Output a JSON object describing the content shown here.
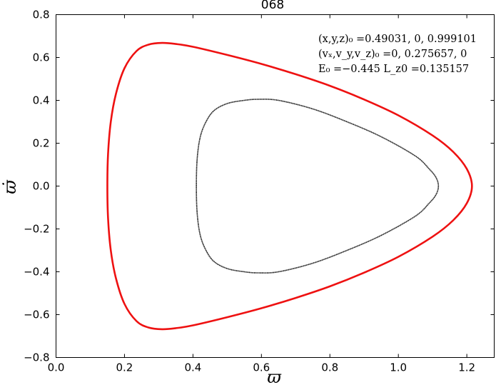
{
  "chart_data": {
    "type": "scatter",
    "title": "068",
    "xlabel": "ϖ",
    "ylabel": "ϖ̇",
    "xlim": [
      0.0,
      1.28
    ],
    "ylim": [
      -0.8,
      0.8
    ],
    "xticks": [
      "0.0",
      "0.2",
      "0.4",
      "0.6",
      "0.8",
      "1.0",
      "1.2"
    ],
    "xtick_values": [
      0.0,
      0.2,
      0.4,
      0.6,
      0.8,
      1.0,
      1.2
    ],
    "yticks": [
      "−0.8",
      "−0.6",
      "−0.4",
      "−0.2",
      "0.0",
      "0.2",
      "0.4",
      "0.6",
      "0.8"
    ],
    "ytick_values": [
      -0.8,
      -0.6,
      -0.4,
      -0.2,
      0.0,
      0.2,
      0.4,
      0.6,
      0.8
    ],
    "grid": false,
    "annotations": [
      "(x,y,z)₀ =0.49031, 0, 0.999101",
      "(vₓ,v_y,v_z)₀ =0, 0.275657, 0",
      "E₀ =−0.445  L_z0 =0.135157"
    ],
    "series": [
      {
        "style": "line",
        "color": "#ee1111",
        "x": [
          0.15,
          0.152,
          0.16,
          0.175,
          0.2,
          0.235,
          0.27,
          0.31,
          0.35,
          0.4,
          0.5,
          0.6,
          0.7,
          0.8,
          0.9,
          1.0,
          1.1,
          1.16,
          1.2,
          1.215,
          1.2,
          1.16,
          1.1,
          1.0,
          0.9,
          0.8,
          0.7,
          0.6,
          0.5,
          0.4,
          0.35,
          0.31,
          0.27,
          0.235,
          0.2,
          0.175,
          0.16,
          0.152,
          0.15
        ],
        "y": [
          0.0,
          0.15,
          0.3,
          0.43,
          0.55,
          0.63,
          0.66,
          0.668,
          0.663,
          0.65,
          0.612,
          0.57,
          0.522,
          0.468,
          0.404,
          0.33,
          0.236,
          0.16,
          0.08,
          0.0,
          -0.08,
          -0.16,
          -0.236,
          -0.33,
          -0.404,
          -0.468,
          -0.522,
          -0.57,
          -0.612,
          -0.65,
          -0.663,
          -0.668,
          -0.66,
          -0.63,
          -0.55,
          -0.43,
          -0.3,
          -0.15,
          0.0
        ]
      },
      {
        "style": "points",
        "color": "#000000",
        "x": [
          0.41,
          0.412,
          0.42,
          0.435,
          0.46,
          0.5,
          0.55,
          0.59,
          0.65,
          0.75,
          0.85,
          0.95,
          1.05,
          1.09,
          1.11,
          1.117,
          1.11,
          1.09,
          1.05,
          0.95,
          0.85,
          0.75,
          0.65,
          0.59,
          0.55,
          0.5,
          0.46,
          0.435,
          0.42,
          0.412,
          0.41
        ],
        "y": [
          0.0,
          0.12,
          0.22,
          0.29,
          0.35,
          0.385,
          0.4,
          0.405,
          0.4,
          0.36,
          0.3,
          0.23,
          0.14,
          0.08,
          0.04,
          0.0,
          -0.04,
          -0.08,
          -0.14,
          -0.23,
          -0.3,
          -0.36,
          -0.4,
          -0.405,
          -0.4,
          -0.385,
          -0.35,
          -0.29,
          -0.22,
          -0.12,
          0.0
        ]
      }
    ]
  }
}
